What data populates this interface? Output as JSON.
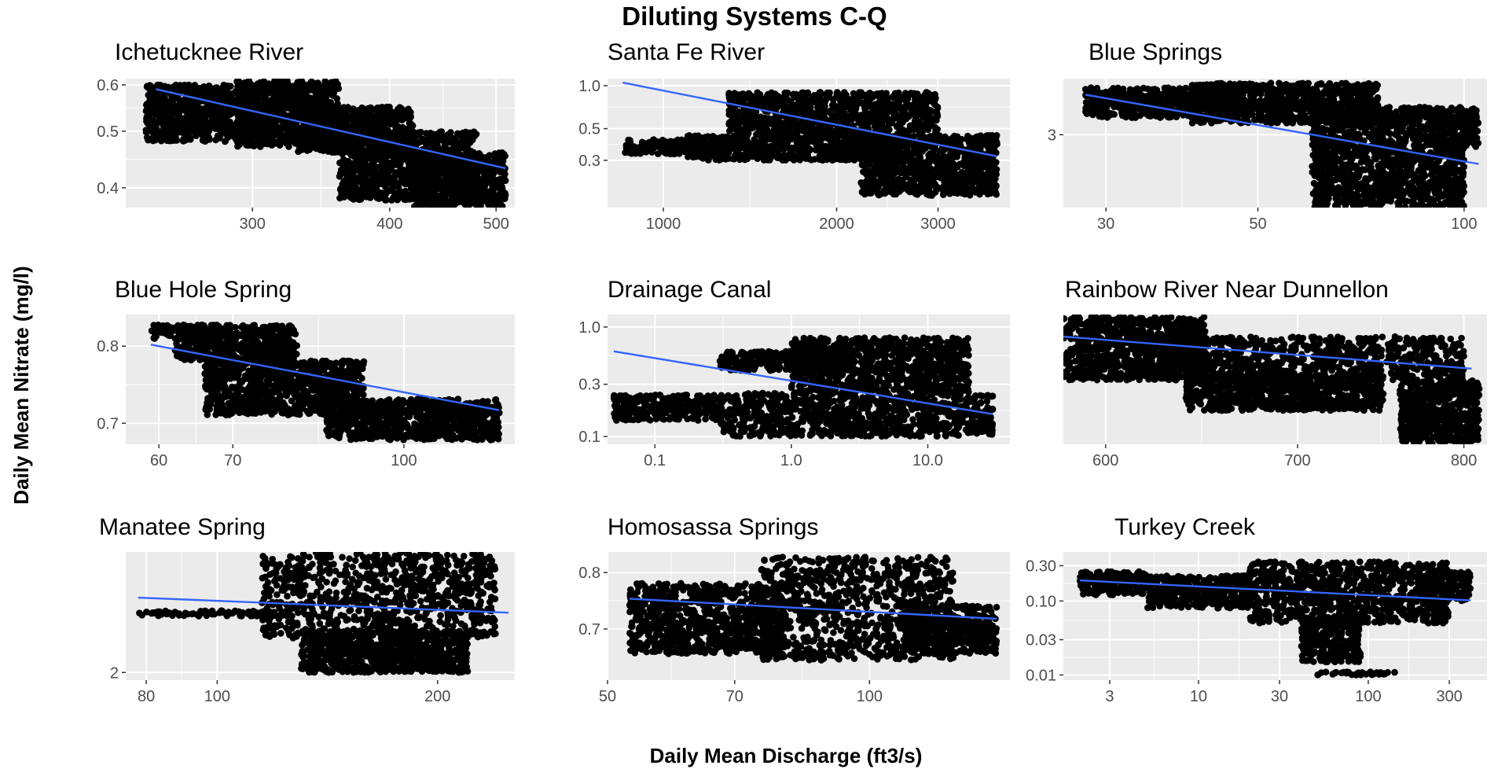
{
  "figure": {
    "title": "Diluting Systems C-Q",
    "xlabel": "Daily Mean Discharge (ft3/s)",
    "ylabel": "Daily Mean Nitrate (mg/l)",
    "colors": {
      "panel_bg": "#ebebeb",
      "grid": "#ffffff",
      "points": "#000000",
      "fit_line": "#3366ff"
    }
  },
  "chart_data": [
    {
      "type": "scatter",
      "title": "Ichetucknee River",
      "x_scale": "log",
      "y_scale": "log",
      "xlim": [
        230,
        520
      ],
      "ylim": [
        0.37,
        0.615
      ],
      "x_ticks": [
        {
          "value": 300,
          "label": "300"
        },
        {
          "value": 400,
          "label": "400"
        },
        {
          "value": 500,
          "label": "500"
        }
      ],
      "y_ticks": [
        {
          "value": 0.4,
          "label": "0.4"
        },
        {
          "value": 0.5,
          "label": "0.5"
        },
        {
          "value": 0.6,
          "label": "0.6"
        }
      ],
      "fit_line": [
        [
          245,
          0.59
        ],
        [
          510,
          0.432
        ]
      ],
      "clusters": [
        {
          "x": [
            240,
            300
          ],
          "y": [
            0.48,
            0.6
          ]
        },
        {
          "x": [
            290,
            360
          ],
          "y": [
            0.47,
            0.61
          ]
        },
        {
          "x": [
            330,
            420
          ],
          "y": [
            0.46,
            0.55
          ]
        },
        {
          "x": [
            360,
            480
          ],
          "y": [
            0.38,
            0.5
          ]
        },
        {
          "x": [
            420,
            510
          ],
          "y": [
            0.37,
            0.46
          ]
        }
      ]
    },
    {
      "type": "scatter",
      "title": "Santa Fe River",
      "x_scale": "log",
      "y_scale": "log",
      "xlim": [
        800,
        4000
      ],
      "ylim": [
        0.14,
        1.12
      ],
      "x_ticks": [
        {
          "value": 1000,
          "label": "1000"
        },
        {
          "value": 2000,
          "label": "2000"
        },
        {
          "value": 3000,
          "label": "3000"
        }
      ],
      "y_ticks": [
        {
          "value": 0.3,
          "label": "0.3"
        },
        {
          "value": 0.5,
          "label": "0.5"
        },
        {
          "value": 1.0,
          "label": "1.0"
        }
      ],
      "fit_line": [
        [
          850,
          1.05
        ],
        [
          3800,
          0.32
        ]
      ],
      "clusters": [
        {
          "x": [
            850,
            1300
          ],
          "y": [
            0.33,
            0.42
          ]
        },
        {
          "x": [
            1100,
            2600
          ],
          "y": [
            0.3,
            0.45
          ]
        },
        {
          "x": [
            1300,
            3000
          ],
          "y": [
            0.45,
            0.9
          ]
        },
        {
          "x": [
            2200,
            3800
          ],
          "y": [
            0.17,
            0.45
          ]
        }
      ]
    },
    {
      "type": "scatter",
      "title": "Blue Springs",
      "x_scale": "log",
      "y_scale": "log",
      "xlim": [
        26,
        108
      ],
      "ylim": [
        2.0,
        4.1
      ],
      "x_ticks": [
        {
          "value": 30,
          "label": "30"
        },
        {
          "value": 50,
          "label": "50"
        },
        {
          "value": 100,
          "label": "100"
        }
      ],
      "y_ticks": [
        {
          "value": 3,
          "label": "3"
        }
      ],
      "fit_line": [
        [
          28,
          3.75
        ],
        [
          105,
          2.55
        ]
      ],
      "clusters": [
        {
          "x": [
            28,
            45
          ],
          "y": [
            3.3,
            3.9
          ]
        },
        {
          "x": [
            40,
            75
          ],
          "y": [
            3.2,
            4.0
          ]
        },
        {
          "x": [
            60,
            105
          ],
          "y": [
            2.8,
            3.5
          ]
        },
        {
          "x": [
            60,
            100
          ],
          "y": [
            2.0,
            2.8
          ]
        }
      ]
    },
    {
      "type": "scatter",
      "title": "Blue Hole Spring",
      "x_scale": "log",
      "y_scale": "log",
      "xlim": [
        56,
        126
      ],
      "ylim": [
        0.675,
        0.845
      ],
      "x_ticks": [
        {
          "value": 60,
          "label": "60"
        },
        {
          "value": 70,
          "label": "70"
        },
        {
          "value": 100,
          "label": "100"
        }
      ],
      "y_ticks": [
        {
          "value": 0.7,
          "label": "0.7"
        },
        {
          "value": 0.8,
          "label": "0.8"
        }
      ],
      "fit_line": [
        [
          59,
          0.802
        ],
        [
          122,
          0.716
        ]
      ],
      "clusters": [
        {
          "x": [
            59,
            68
          ],
          "y": [
            0.81,
            0.83
          ]
        },
        {
          "x": [
            62,
            80
          ],
          "y": [
            0.78,
            0.83
          ]
        },
        {
          "x": [
            66,
            92
          ],
          "y": [
            0.71,
            0.78
          ]
        },
        {
          "x": [
            85,
            122
          ],
          "y": [
            0.68,
            0.73
          ]
        }
      ]
    },
    {
      "type": "scatter",
      "title": "Drainage Canal",
      "x_scale": "log",
      "y_scale": "log",
      "xlim": [
        0.045,
        40
      ],
      "ylim": [
        0.085,
        1.3
      ],
      "x_ticks": [
        {
          "value": 0.1,
          "label": "0.1"
        },
        {
          "value": 1.0,
          "label": "1.0"
        },
        {
          "value": 10.0,
          "label": "10.0"
        }
      ],
      "y_ticks": [
        {
          "value": 0.1,
          "label": "0.1"
        },
        {
          "value": 0.3,
          "label": "0.3"
        },
        {
          "value": 1.0,
          "label": "1.0"
        }
      ],
      "fit_line": [
        [
          0.05,
          0.6
        ],
        [
          30,
          0.16
        ]
      ],
      "clusters": [
        {
          "x": [
            0.05,
            0.3
          ],
          "y": [
            0.14,
            0.24
          ]
        },
        {
          "x": [
            0.3,
            30
          ],
          "y": [
            0.1,
            0.25
          ]
        },
        {
          "x": [
            0.3,
            3
          ],
          "y": [
            0.4,
            0.6
          ]
        },
        {
          "x": [
            1,
            20
          ],
          "y": [
            0.25,
            0.8
          ]
        }
      ]
    },
    {
      "type": "scatter",
      "title": "Rainbow River Near Dunnellon",
      "x_scale": "log",
      "y_scale": "log",
      "xlim": [
        580,
        815
      ],
      "ylim": [
        0.9,
        1.35
      ],
      "x_ticks": [
        {
          "value": 600,
          "label": "600"
        },
        {
          "value": 700,
          "label": "700"
        },
        {
          "value": 800,
          "label": "800"
        }
      ],
      "y_ticks": [],
      "fit_line": [
        [
          580,
          1.26
        ],
        [
          805,
          1.14
        ]
      ],
      "clusters": [
        {
          "x": [
            580,
            650
          ],
          "y": [
            1.1,
            1.34
          ]
        },
        {
          "x": [
            620,
            800
          ],
          "y": [
            1.1,
            1.26
          ]
        },
        {
          "x": [
            640,
            750
          ],
          "y": [
            1.0,
            1.12
          ]
        },
        {
          "x": [
            760,
            810
          ],
          "y": [
            0.9,
            1.1
          ]
        }
      ]
    },
    {
      "type": "scatter",
      "title": "Manatee Spring",
      "x_scale": "log",
      "y_scale": "log",
      "xlim": [
        75,
        255
      ],
      "ylim": [
        1.92,
        3.8
      ],
      "x_ticks": [
        {
          "value": 80,
          "label": "80"
        },
        {
          "value": 100,
          "label": "100"
        },
        {
          "value": 200,
          "label": "200"
        }
      ],
      "y_ticks": [
        {
          "value": 2,
          "label": "2"
        }
      ],
      "fit_line": [
        [
          78,
          2.98
        ],
        [
          250,
          2.75
        ]
      ],
      "clusters": [
        {
          "x": [
            78,
            120
          ],
          "y": [
            2.7,
            2.78
          ]
        },
        {
          "x": [
            115,
            240
          ],
          "y": [
            2.4,
            3.8
          ]
        },
        {
          "x": [
            130,
            220
          ],
          "y": [
            2.0,
            2.5
          ]
        }
      ]
    },
    {
      "type": "scatter",
      "title": "Homosassa Springs",
      "x_scale": "log",
      "y_scale": "log",
      "xlim": [
        50,
        145
      ],
      "ylim": [
        0.62,
        0.84
      ],
      "x_ticks": [
        {
          "value": 50,
          "label": "50"
        },
        {
          "value": 70,
          "label": "70"
        },
        {
          "value": 100,
          "label": "100"
        }
      ],
      "y_ticks": [
        {
          "value": 0.7,
          "label": "0.7"
        },
        {
          "value": 0.8,
          "label": "0.8"
        }
      ],
      "fit_line": [
        [
          53,
          0.752
        ],
        [
          140,
          0.717
        ]
      ],
      "clusters": [
        {
          "x": [
            53,
            80
          ],
          "y": [
            0.66,
            0.78
          ]
        },
        {
          "x": [
            75,
            125
          ],
          "y": [
            0.65,
            0.83
          ]
        },
        {
          "x": [
            110,
            140
          ],
          "y": [
            0.66,
            0.74
          ]
        }
      ]
    },
    {
      "type": "scatter",
      "title": "Turkey Creek",
      "x_scale": "log",
      "y_scale": "log",
      "xlim": [
        1.6,
        500
      ],
      "ylim": [
        0.0085,
        0.46
      ],
      "x_ticks": [
        {
          "value": 3,
          "label": "3"
        },
        {
          "value": 10,
          "label": "10"
        },
        {
          "value": 30,
          "label": "30"
        },
        {
          "value": 100,
          "label": "100"
        },
        {
          "value": 300,
          "label": "300"
        }
      ],
      "y_ticks": [
        {
          "value": 0.01,
          "label": "0.01"
        },
        {
          "value": 0.03,
          "label": "0.03"
        },
        {
          "value": 0.1,
          "label": "0.10"
        },
        {
          "value": 0.3,
          "label": "0.30"
        }
      ],
      "fit_line": [
        [
          2,
          0.19
        ],
        [
          400,
          0.102
        ]
      ],
      "clusters": [
        {
          "x": [
            2,
            5
          ],
          "y": [
            0.12,
            0.25
          ]
        },
        {
          "x": [
            5,
            20
          ],
          "y": [
            0.08,
            0.22
          ]
        },
        {
          "x": [
            20,
            300
          ],
          "y": [
            0.05,
            0.34
          ]
        },
        {
          "x": [
            40,
            90
          ],
          "y": [
            0.015,
            0.06
          ]
        },
        {
          "x": [
            50,
            150
          ],
          "y": [
            0.01,
            0.011
          ]
        },
        {
          "x": [
            200,
            400
          ],
          "y": [
            0.1,
            0.25
          ]
        }
      ]
    }
  ]
}
